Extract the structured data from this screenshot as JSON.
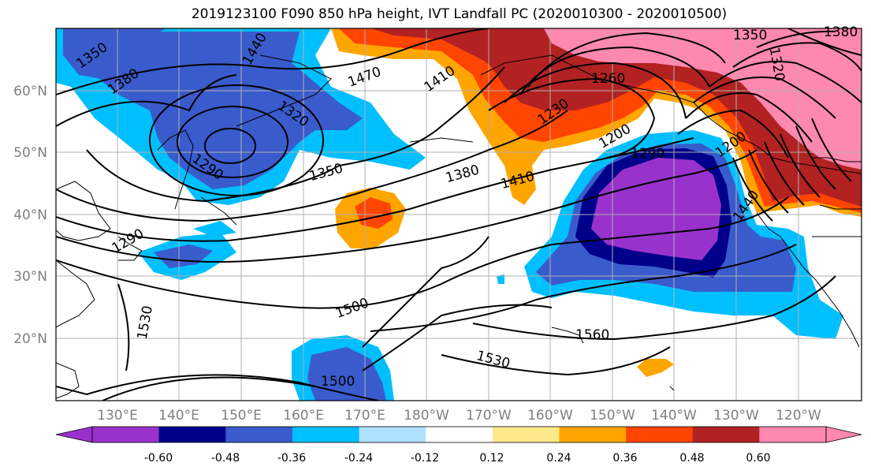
{
  "title": "2019123100 F090 850 hPa height, IVT Landfall PC (2020010300 - 2020010500)",
  "lat_labels": [
    "60°N",
    "50°N",
    "40°N",
    "30°N",
    "20°N"
  ],
  "lon_labels": [
    "130°E",
    "140°E",
    "150°E",
    "160°E",
    "170°E",
    "180°W",
    "170°W",
    "160°W",
    "150°W",
    "140°W",
    "130°W",
    "120°W"
  ],
  "colorbar": {
    "colors": [
      "#9932cc",
      "#00008b",
      "#3a5bcc",
      "#00bfff",
      "#b0e0ff",
      "#ffffff",
      "#ffe88a",
      "#ffa500",
      "#ff4500",
      "#b22222",
      "#ff88b0"
    ],
    "tick_labels": [
      "-0.60",
      "-0.48",
      "-0.36",
      "-0.24",
      "-0.12",
      "0.12",
      "0.24",
      "0.36",
      "0.48",
      "0.60"
    ]
  },
  "contour_labels": [
    {
      "text": "1350"
    },
    {
      "text": "1380"
    },
    {
      "text": "1440"
    },
    {
      "text": "1470"
    },
    {
      "text": "1410"
    },
    {
      "text": "1350"
    },
    {
      "text": "1380"
    },
    {
      "text": "1320"
    },
    {
      "text": "1260"
    },
    {
      "text": "1230"
    },
    {
      "text": "1200"
    },
    {
      "text": "1290"
    },
    {
      "text": "1350"
    },
    {
      "text": "1380"
    },
    {
      "text": "1410"
    },
    {
      "text": "1290"
    },
    {
      "text": "1200"
    },
    {
      "text": "1440"
    },
    {
      "text": "1320"
    },
    {
      "text": "1500"
    },
    {
      "text": "1560"
    },
    {
      "text": "1530"
    },
    {
      "text": "1530"
    },
    {
      "text": "1500"
    },
    {
      "text": "1290"
    }
  ]
}
